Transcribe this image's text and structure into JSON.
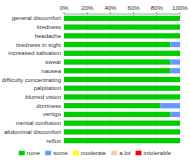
{
  "chart_data": {
    "type": "bar",
    "orientation": "horizontal",
    "stacked": true,
    "categories": [
      "general discomfort",
      "tiredness",
      "headache",
      "tiredness in sight",
      "increased salivation",
      "sweat",
      "nausea",
      "difficulty concentrating",
      "palpitation",
      "blurred vision",
      "dizziness",
      "vertigo",
      "mental confusion",
      "abdominal discomfort",
      "reflux"
    ],
    "series": [
      {
        "name": "none",
        "color": "#00cc00",
        "values": [
          100,
          100,
          100,
          91.7,
          100,
          91.7,
          91.7,
          100,
          100,
          100,
          83.3,
          91.7,
          100,
          100,
          100
        ]
      },
      {
        "name": "some",
        "color": "#6699ff",
        "values": [
          0,
          0,
          0,
          8.3,
          0,
          8.3,
          8.3,
          0,
          0,
          0,
          16.7,
          8.3,
          0,
          0,
          0
        ]
      },
      {
        "name": "moderate",
        "color": "#ffff00",
        "values": [
          0,
          0,
          0,
          0,
          0,
          0,
          0,
          0,
          0,
          0,
          0,
          0,
          0,
          0,
          0
        ]
      },
      {
        "name": "a lot",
        "color": "#ffcc99",
        "values": [
          0,
          0,
          0,
          0,
          0,
          0,
          0,
          0,
          0,
          0,
          0,
          0,
          0,
          0,
          0
        ]
      },
      {
        "name": "intolerable",
        "color": "#ff0000",
        "values": [
          0,
          0,
          0,
          0,
          0,
          0,
          0,
          0,
          0,
          0,
          0,
          0,
          0,
          0,
          0
        ]
      }
    ],
    "xlim": [
      0,
      100
    ],
    "xticks": [
      {
        "value": 0,
        "label": "0%"
      },
      {
        "value": 20,
        "label": "20%"
      },
      {
        "value": 40,
        "label": "40%"
      },
      {
        "value": 60,
        "label": "60%"
      },
      {
        "value": 80,
        "label": "80%"
      },
      {
        "value": 100,
        "label": "100%"
      }
    ],
    "grid": true,
    "legend": "bottom"
  }
}
